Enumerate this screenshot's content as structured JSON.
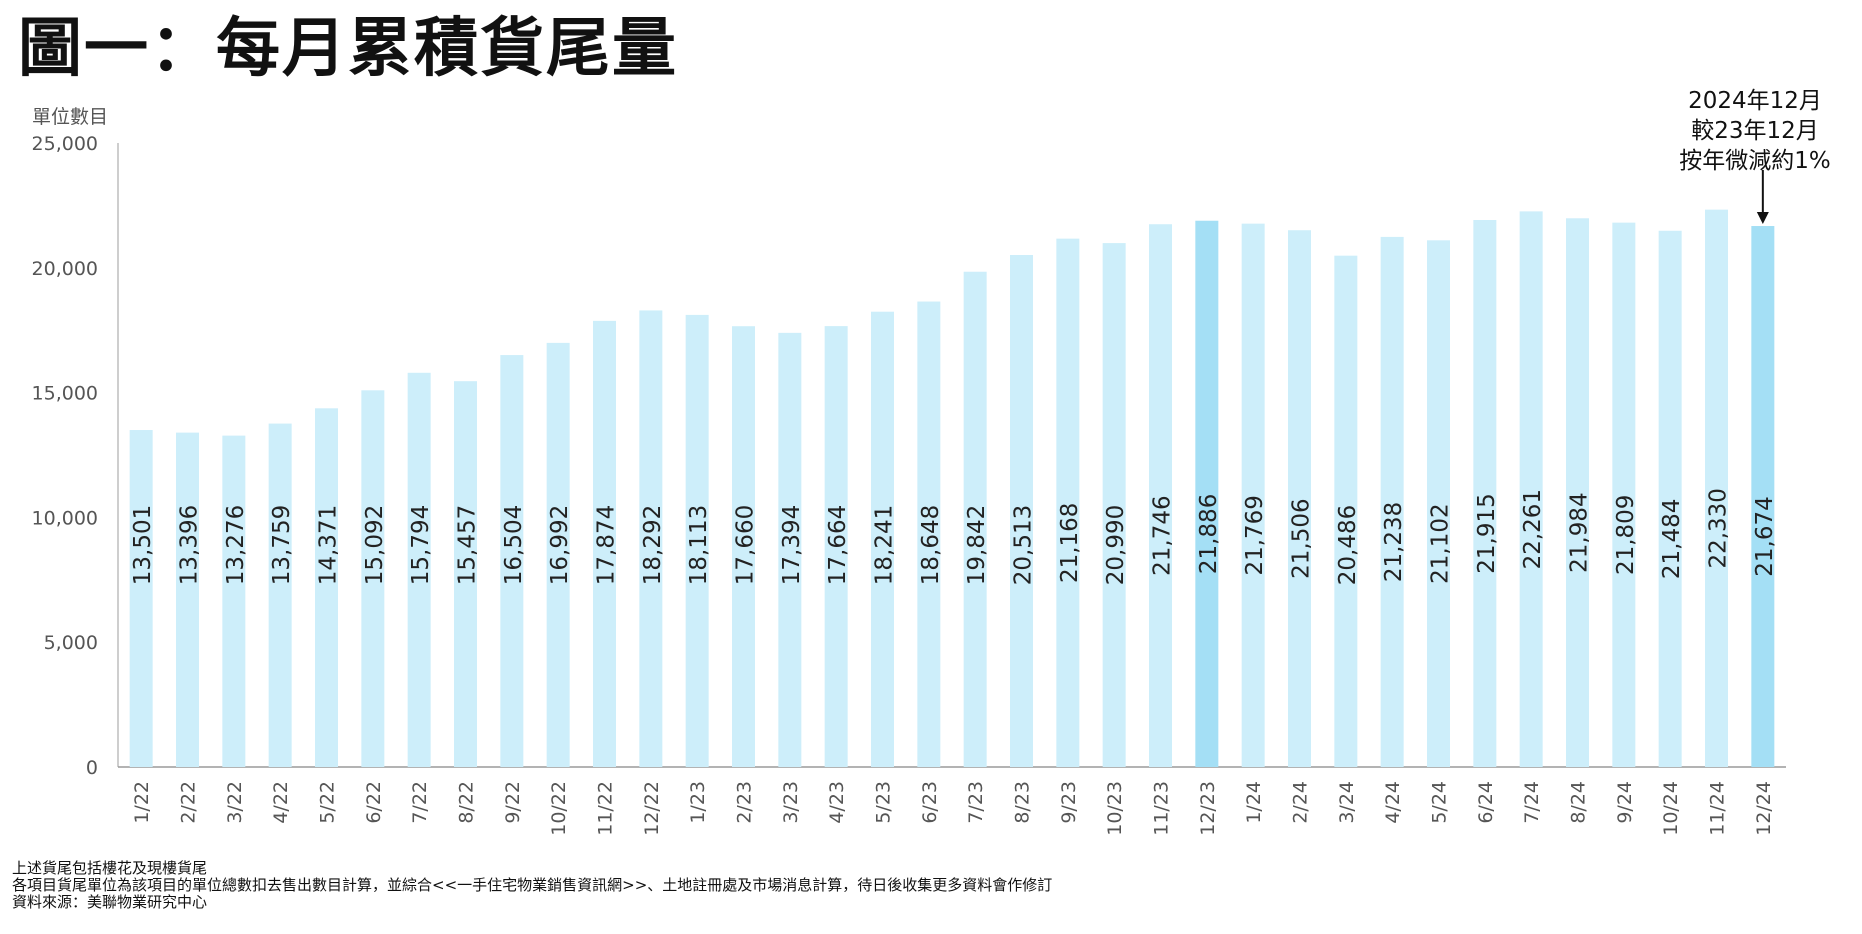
{
  "title": "圖一：每月累積貨尾量",
  "chart_data": {
    "type": "bar",
    "ylabel": "單位數目",
    "ylim": [
      0,
      25000
    ],
    "yticks": [
      "0",
      "5,000",
      "10,000",
      "15,000",
      "20,000",
      "25,000"
    ],
    "categories": [
      "1/22",
      "2/22",
      "3/22",
      "4/22",
      "5/22",
      "6/22",
      "7/22",
      "8/22",
      "9/22",
      "10/22",
      "11/22",
      "12/22",
      "1/23",
      "2/23",
      "3/23",
      "4/23",
      "5/23",
      "6/23",
      "7/23",
      "8/23",
      "9/23",
      "10/23",
      "11/23",
      "12/23",
      "1/24",
      "2/24",
      "3/24",
      "4/24",
      "5/24",
      "6/24",
      "7/24",
      "8/24",
      "9/24",
      "10/24",
      "11/24",
      "12/24"
    ],
    "values": [
      13501,
      13396,
      13276,
      13759,
      14371,
      15092,
      15794,
      15457,
      16504,
      16992,
      17874,
      18292,
      18113,
      17660,
      17394,
      17664,
      18241,
      18648,
      19842,
      20513,
      21168,
      20990,
      21746,
      21886,
      21769,
      21506,
      20486,
      21238,
      21102,
      21915,
      22261,
      21984,
      21809,
      21484,
      22330,
      21674
    ],
    "value_labels": [
      "13,501",
      "13,396",
      "13,276",
      "13,759",
      "14,371",
      "15,092",
      "15,794",
      "15,457",
      "16,504",
      "16,992",
      "17,874",
      "18,292",
      "18,113",
      "17,660",
      "17,394",
      "17,664",
      "18,241",
      "18,648",
      "19,842",
      "20,513",
      "21,168",
      "20,990",
      "21,746",
      "21,886",
      "21,769",
      "21,506",
      "20,486",
      "21,238",
      "21,102",
      "21,915",
      "22,261",
      "21,984",
      "21,809",
      "21,484",
      "22,330",
      "21,674"
    ],
    "highlight_categories": [
      "12/23",
      "12/24"
    ],
    "bar_color": "#cdeefa",
    "highlight_color": "#a4dff5",
    "annotation": [
      "2024年12月",
      "較23年12月",
      "按年微減約1%"
    ],
    "annotation_target": "12/24"
  },
  "footnotes": [
    "上述貨尾包括樓花及現樓貨尾",
    "各項目貨尾單位為該項目的單位總數扣去售出數目計算，並綜合<<一手住宅物業銷售資訊網>>、土地註冊處及市場消息計算，待日後收集更多資料會作修訂",
    "資料來源：美聯物業研究中心"
  ]
}
